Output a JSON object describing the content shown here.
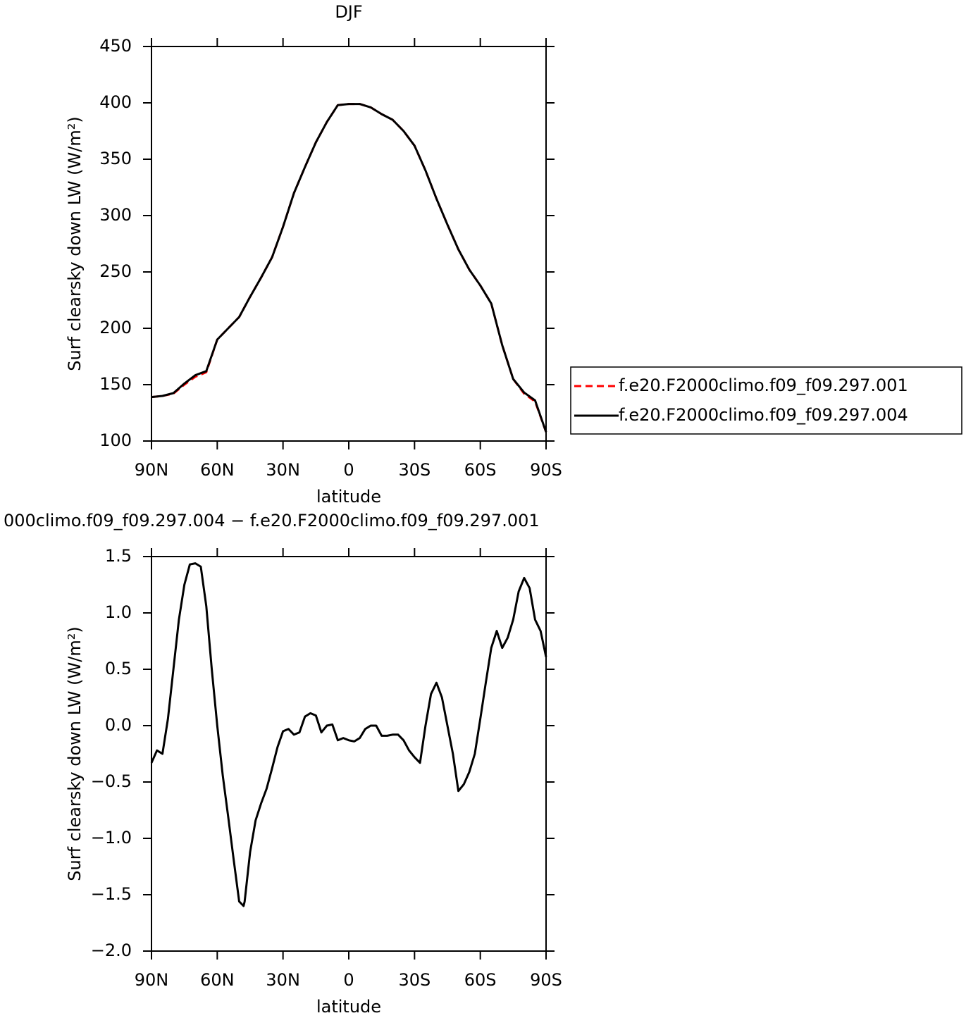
{
  "chart_data": [
    {
      "type": "line",
      "title": "DJF",
      "xlabel": "latitude",
      "ylabel": "Surf clearsky down LW (W/m²)",
      "x": [
        90,
        85,
        80,
        75,
        70,
        65,
        60,
        55,
        50,
        45,
        40,
        35,
        30,
        25,
        20,
        15,
        10,
        5,
        0,
        -5,
        -10,
        -15,
        -20,
        -25,
        -30,
        -35,
        -40,
        -45,
        -50,
        -55,
        -60,
        -65,
        -70,
        -75,
        -80,
        -85,
        -90
      ],
      "series": [
        {
          "name": "f.e20.F2000climo.f09_f09.297.001",
          "color": "#ff0000",
          "dash": true,
          "values": [
            139,
            140,
            142,
            150,
            157,
            161,
            190,
            200,
            210,
            228,
            245,
            263,
            290,
            320,
            343,
            365,
            383,
            398,
            399,
            399,
            396,
            390,
            385,
            375,
            362,
            340,
            315,
            292,
            270,
            252,
            238,
            222,
            185,
            155,
            142,
            135,
            108
          ]
        },
        {
          "name": "f.e20.F2000climo.f09_f09.297.004",
          "color": "#000000",
          "dash": false,
          "values": [
            139,
            140,
            142.5,
            151,
            158.4,
            162,
            190,
            200,
            210,
            228,
            245,
            263,
            290,
            320,
            343,
            365,
            383,
            398,
            399,
            399,
            396,
            390,
            385,
            375,
            362,
            340,
            315,
            292,
            270,
            252,
            238,
            222,
            185,
            155,
            143,
            136,
            108
          ]
        }
      ],
      "xlim": [
        90,
        -90
      ],
      "xticks": [
        {
          "value": 90,
          "label": "90N"
        },
        {
          "value": 60,
          "label": "60N"
        },
        {
          "value": 30,
          "label": "30N"
        },
        0,
        {
          "value": -30,
          "label": "30S"
        },
        {
          "value": -60,
          "label": "60S"
        },
        {
          "value": -90,
          "label": "90S"
        }
      ],
      "ylim": [
        100,
        450
      ],
      "yticks": [
        100,
        150,
        200,
        250,
        300,
        350,
        400,
        450
      ],
      "legend": "right"
    },
    {
      "type": "line",
      "title": "000climo.f09_f09.297.004 − f.e20.F2000climo.f09_f09.297.001",
      "xlabel": "latitude",
      "ylabel": "Surf clearsky down LW (W/m²)",
      "x": [
        90,
        87.5,
        85,
        82.5,
        80,
        77.5,
        75,
        72.5,
        70,
        67.5,
        65,
        62.5,
        60,
        57.5,
        55,
        52.5,
        50,
        48,
        47.5,
        45,
        42.5,
        40,
        37.5,
        35,
        32.5,
        30,
        27.5,
        25,
        22.5,
        20,
        17.5,
        15,
        12.5,
        10,
        7.5,
        5,
        2.5,
        0,
        -2.5,
        -5,
        -7.5,
        -10,
        -12.5,
        -15,
        -17.5,
        -20,
        -22.5,
        -25,
        -27.5,
        -30,
        -32.5,
        -35,
        -37.5,
        -40,
        -42.5,
        -45,
        -47.5,
        -50,
        -52.5,
        -55,
        -57.5,
        -60,
        -62.5,
        -65,
        -67.5,
        -70,
        -72.5,
        -75,
        -77.5,
        -80,
        -82.5,
        -85,
        -87.5,
        -90
      ],
      "series": [
        {
          "name": null,
          "color": "#000000",
          "dash": false,
          "values": [
            -0.33,
            -0.22,
            -0.25,
            0.06,
            0.5,
            0.94,
            1.25,
            1.43,
            1.44,
            1.41,
            1.06,
            0.5,
            0.0,
            -0.44,
            -0.81,
            -1.19,
            -1.56,
            -1.6,
            -1.56,
            -1.12,
            -0.84,
            -0.69,
            -0.56,
            -0.38,
            -0.19,
            -0.05,
            -0.03,
            -0.08,
            -0.06,
            0.08,
            0.11,
            0.09,
            -0.06,
            0.0,
            0.01,
            -0.13,
            -0.11,
            -0.13,
            -0.14,
            -0.11,
            -0.03,
            0.0,
            0.0,
            -0.09,
            -0.09,
            -0.08,
            -0.08,
            -0.13,
            -0.22,
            -0.28,
            -0.33,
            0.0,
            0.28,
            0.38,
            0.25,
            0.0,
            -0.25,
            -0.58,
            -0.52,
            -0.41,
            -0.25,
            0.06,
            0.38,
            0.69,
            0.84,
            0.69,
            0.78,
            0.94,
            1.19,
            1.31,
            1.22,
            0.94,
            0.84,
            0.61
          ]
        }
      ],
      "xlim": [
        90,
        -90
      ],
      "xticks": [
        {
          "value": 90,
          "label": "90N"
        },
        {
          "value": 60,
          "label": "60N"
        },
        {
          "value": 30,
          "label": "30N"
        },
        0,
        {
          "value": -30,
          "label": "30S"
        },
        {
          "value": -60,
          "label": "60S"
        },
        {
          "value": -90,
          "label": "90S"
        }
      ],
      "ylim": [
        -2.0,
        1.5
      ],
      "yticks": [
        {
          "value": -2.0,
          "label": "−2.0"
        },
        {
          "value": -1.5,
          "label": "−1.5"
        },
        {
          "value": -1.0,
          "label": "−1.0"
        },
        {
          "value": -0.5,
          "label": "−0.5"
        },
        {
          "value": 0.0,
          "label": "0.0"
        },
        0.5,
        {
          "value": 1.0,
          "label": "1.0"
        },
        1.5
      ]
    }
  ]
}
